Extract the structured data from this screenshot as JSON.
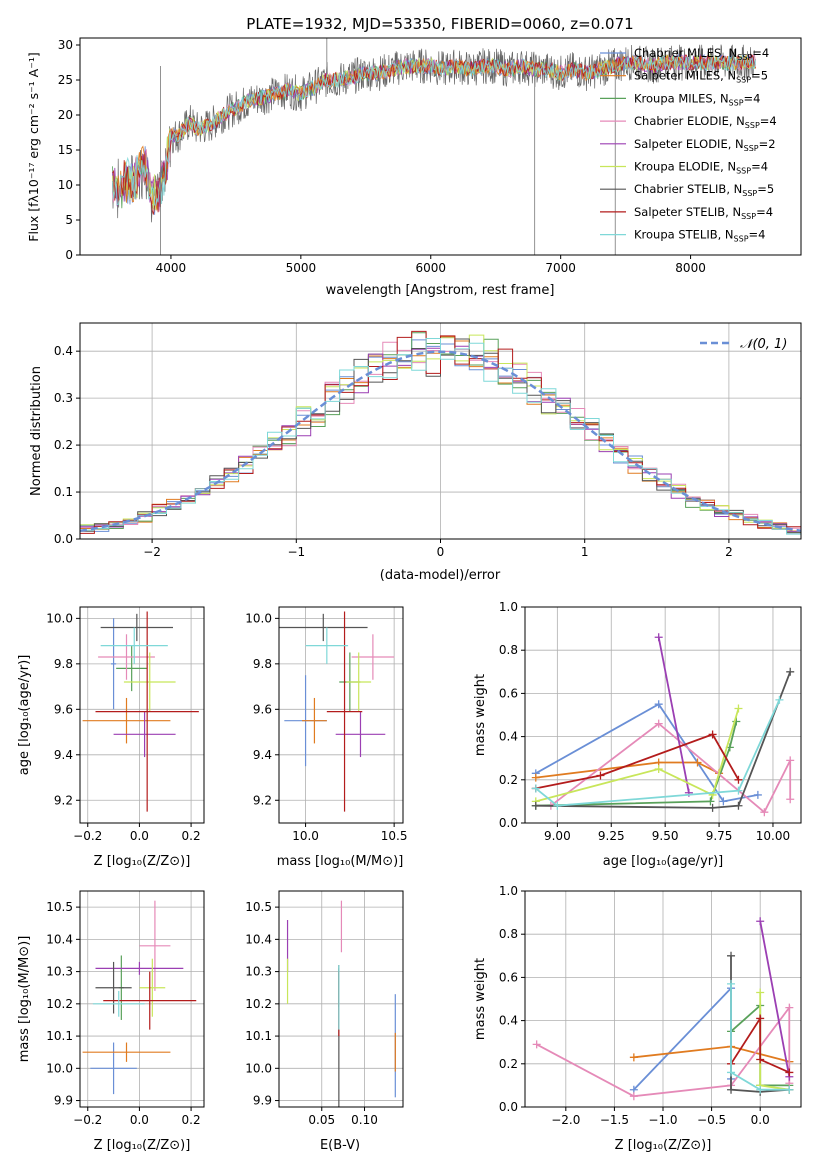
{
  "colors": [
    "#6a8fd6",
    "#e07b20",
    "#59a15a",
    "#e58ab8",
    "#9b3fb3",
    "#c8e65a",
    "#555555",
    "#b31c1c",
    "#7fd8d8"
  ],
  "chart_data": [
    {
      "id": "spectrum",
      "type": "line",
      "title": "PLATE=1932, MJD=53350, FIBERID=0060, z=0.071",
      "xlabel": "wavelength [Angstrom, rest frame]",
      "ylabel": "Flux [fλ10⁻¹⁷ erg cm⁻² s⁻¹ A⁻¹]",
      "xlim": [
        3300,
        8850
      ],
      "ylim": [
        0,
        31
      ],
      "xticks": [
        "4000",
        "5000",
        "6000",
        "7000",
        "8000"
      ],
      "yticks": [
        "0",
        "5",
        "10",
        "15",
        "20",
        "25",
        "30"
      ],
      "grid": false,
      "legend_position": "upper-right",
      "x": [
        3550,
        3600,
        3650,
        3700,
        3750,
        3800,
        3850,
        3900,
        3950,
        4000,
        4050,
        4100,
        4150,
        4200,
        4300,
        4400,
        4500,
        4600,
        4700,
        4800,
        4900,
        5000,
        5100,
        5200,
        5300,
        5400,
        5500,
        5600,
        5700,
        5800,
        5900,
        6000,
        6100,
        6200,
        6300,
        6400,
        6500,
        6600,
        6700,
        6800,
        6900,
        7000,
        7100,
        7200,
        7300,
        7400,
        7500,
        7600,
        7700,
        7800,
        7900,
        8000,
        8100,
        8200,
        8300,
        8400,
        8500,
        8600,
        8700,
        8800
      ],
      "flux": [
        10,
        9,
        11,
        10,
        12,
        13,
        9,
        8,
        12,
        17,
        17,
        18,
        19,
        18,
        18.5,
        20,
        21,
        22,
        22.5,
        23,
        23.5,
        23,
        24,
        25,
        25,
        25.5,
        26,
        26,
        26.5,
        27,
        27,
        27,
        26.5,
        27,
        26.5,
        27,
        27,
        26.5,
        27,
        26.5,
        26.5,
        26,
        26.5,
        26,
        26.5,
        27,
        27.5,
        27.5,
        27,
        27.5,
        27.5,
        27.5,
        27.5,
        27.5,
        27.5,
        27.5,
        27.5,
        27.5,
        27.5,
        27.5
      ],
      "series": [
        {
          "name": "Chabrier MILES, N_SSP=4"
        },
        {
          "name": "Salpeter MILES, N_SSP=5"
        },
        {
          "name": "Kroupa MILES, N_SSP=4"
        },
        {
          "name": "Chabrier ELODIE, N_SSP=4"
        },
        {
          "name": "Salpeter ELODIE, N_SSP=2"
        },
        {
          "name": "Kroupa ELODIE, N_SSP=4"
        },
        {
          "name": "Chabrier STELIB, N_SSP=5"
        },
        {
          "name": "Salpeter STELIB, N_SSP=4"
        },
        {
          "name": "Kroupa STELIB, N_SSP=4"
        }
      ],
      "legend": [
        {
          "pre": "Chabrier MILES, N",
          "sub": "SSP",
          "post": "=4"
        },
        {
          "pre": "Salpeter MILES, N",
          "sub": "SSP",
          "post": "=5"
        },
        {
          "pre": "Kroupa MILES, N",
          "sub": "SSP",
          "post": "=4"
        },
        {
          "pre": "Chabrier ELODIE, N",
          "sub": "SSP",
          "post": "=4"
        },
        {
          "pre": "Salpeter ELODIE, N",
          "sub": "SSP",
          "post": "=2"
        },
        {
          "pre": "Kroupa ELODIE, N",
          "sub": "SSP",
          "post": "=4"
        },
        {
          "pre": "Chabrier STELIB, N",
          "sub": "SSP",
          "post": "=5"
        },
        {
          "pre": "Salpeter STELIB, N",
          "sub": "SSP",
          "post": "=4"
        },
        {
          "pre": "Kroupa STELIB, N",
          "sub": "SSP",
          "post": "=4"
        }
      ]
    },
    {
      "id": "residuals",
      "type": "line",
      "xlabel": "(data-model)/error",
      "ylabel": "Normed distribution",
      "xlim": [
        -2.5,
        2.5
      ],
      "ylim": [
        0,
        0.46
      ],
      "xticks": [
        "−2",
        "−1",
        "0",
        "1",
        "2"
      ],
      "yticks": [
        "0.0",
        "0.1",
        "0.2",
        "0.3",
        "0.4"
      ],
      "grid": true,
      "legend_position": "upper-right",
      "legend": [
        "𝒩(0, 1)"
      ],
      "bin_width": 0.1,
      "histograms": [
        [
          0.03,
          0.03,
          0.05,
          0.06,
          0.08,
          0.1,
          0.13,
          0.17,
          0.2,
          0.22,
          0.25,
          0.28,
          0.3,
          0.33,
          0.36,
          0.38,
          0.39,
          0.41,
          0.4,
          0.42,
          0.4,
          0.4,
          0.39,
          0.37,
          0.35,
          0.32,
          0.29,
          0.26,
          0.22,
          0.19,
          0.16,
          0.13,
          0.1,
          0.08,
          0.06,
          0.05,
          0.04,
          0.03,
          0.03,
          0.03,
          0.02,
          0.02,
          0.02,
          0.02,
          0.02,
          0.02,
          0.02,
          0.02,
          0.02,
          0.02
        ]
      ],
      "normal_pdf": true
    },
    {
      "id": "age-vs-Z",
      "type": "scatter",
      "xlabel": "Z [log₁₀(Z/Z⊙)]",
      "ylabel": "age  [log₁₀(age/yr)]",
      "xlim": [
        -0.23,
        0.25
      ],
      "ylim": [
        9.1,
        10.05
      ],
      "xticks": [
        "−0.2",
        "0.0",
        "0.2"
      ],
      "yticks": [
        "9.2",
        "9.4",
        "9.6",
        "9.8",
        "10.0"
      ],
      "grid": true,
      "points": [
        {
          "x": -0.1,
          "y": 9.8,
          "xerr": 0.01,
          "yerr": 0.2
        },
        {
          "x": -0.05,
          "y": 9.55,
          "xerr": 0.17,
          "yerr": 0.1
        },
        {
          "x": -0.03,
          "y": 9.78,
          "xerr": 0.06,
          "yerr": 0.1
        },
        {
          "x": -0.05,
          "y": 9.83,
          "xerr": 0.11,
          "yerr": 0.1
        },
        {
          "x": 0.02,
          "y": 9.49,
          "xerr": 0.12,
          "yerr": 0.1
        },
        {
          "x": 0.04,
          "y": 9.72,
          "xerr": 0.1,
          "yerr": 0.13
        },
        {
          "x": -0.01,
          "y": 9.96,
          "xerr": 0.14,
          "yerr": 0.06
        },
        {
          "x": 0.03,
          "y": 9.59,
          "xerr": 0.2,
          "yerr": 0.44
        },
        {
          "x": -0.02,
          "y": 9.88,
          "xerr": 0.13,
          "yerr": 0.08
        }
      ]
    },
    {
      "id": "age-vs-mass",
      "type": "scatter",
      "xlabel": "mass [log₁₀(M/M⊙)]",
      "xlim": [
        9.85,
        10.55
      ],
      "ylim": [
        9.1,
        10.05
      ],
      "xticks": [
        "10.0",
        "10.5"
      ],
      "yticks": [
        "9.2",
        "9.4",
        "9.6",
        "9.8",
        "10.0"
      ],
      "grid": true,
      "points": [
        {
          "x": 10.0,
          "y": 9.55,
          "xerr": 0.12,
          "yerr": 0.2
        },
        {
          "x": 10.05,
          "y": 9.55,
          "xerr": 0.07,
          "yerr": 0.1
        },
        {
          "x": 10.25,
          "y": 9.72,
          "xerr": 0.06,
          "yerr": 0.13
        },
        {
          "x": 10.38,
          "y": 9.83,
          "xerr": 0.12,
          "yerr": 0.1
        },
        {
          "x": 10.31,
          "y": 9.49,
          "xerr": 0.14,
          "yerr": 0.1
        },
        {
          "x": 10.3,
          "y": 9.72,
          "xerr": 0.07,
          "yerr": 0.13
        },
        {
          "x": 10.1,
          "y": 9.96,
          "xerr": 0.25,
          "yerr": 0.06
        },
        {
          "x": 10.22,
          "y": 9.59,
          "xerr": 0.1,
          "yerr": 0.44
        },
        {
          "x": 10.12,
          "y": 9.88,
          "xerr": 0.12,
          "yerr": 0.08
        }
      ]
    },
    {
      "id": "weight-vs-age",
      "type": "line",
      "xlabel": "age  [log₁₀(age/yr)]",
      "ylabel": "mass weight",
      "xlim": [
        8.85,
        10.13
      ],
      "ylim": [
        0,
        1
      ],
      "xticks": [
        "9.00",
        "9.25",
        "9.50",
        "9.75",
        "10.00"
      ],
      "yticks": [
        "0.0",
        "0.2",
        "0.4",
        "0.6",
        "0.8",
        "1.0"
      ],
      "grid": true,
      "lines": [
        {
          "x": [
            8.9,
            9.47,
            9.77,
            9.93
          ],
          "y": [
            0.23,
            0.55,
            0.1,
            0.13
          ]
        },
        {
          "x": [
            8.9,
            9.47,
            9.65,
            9.75
          ],
          "y": [
            0.21,
            0.28,
            0.28,
            0.23
          ]
        },
        {
          "x": [
            8.9,
            9.71,
            9.8,
            9.83
          ],
          "y": [
            0.08,
            0.1,
            0.35,
            0.47
          ]
        },
        {
          "x": [
            8.97,
            9.47,
            9.96,
            10.08,
            10.08
          ],
          "y": [
            0.08,
            0.46,
            0.05,
            0.29,
            0.11
          ]
        },
        {
          "x": [
            9.47,
            9.61
          ],
          "y": [
            0.86,
            0.14
          ]
        },
        {
          "x": [
            8.9,
            9.47,
            9.72,
            9.84
          ],
          "y": [
            0.1,
            0.25,
            0.13,
            0.53
          ]
        },
        {
          "x": [
            8.9,
            9.72,
            9.84,
            10.08
          ],
          "y": [
            0.08,
            0.07,
            0.08,
            0.7
          ]
        },
        {
          "x": [
            8.9,
            9.2,
            9.72,
            9.84
          ],
          "y": [
            0.16,
            0.22,
            0.41,
            0.2
          ]
        },
        {
          "x": [
            8.9,
            9.0,
            9.84,
            10.03
          ],
          "y": [
            0.16,
            0.08,
            0.15,
            0.57
          ]
        }
      ]
    },
    {
      "id": "mass-vs-Z",
      "type": "scatter",
      "xlabel": "Z [log₁₀(Z/Z⊙)]",
      "ylabel": "mass [log₁₀(M/M⊙)]",
      "xlim": [
        -0.23,
        0.25
      ],
      "ylim": [
        9.88,
        10.55
      ],
      "xticks": [
        "−0.2",
        "0.0",
        "0.2"
      ],
      "yticks": [
        "9.9",
        "10.0",
        "10.1",
        "10.2",
        "10.3",
        "10.4",
        "10.5"
      ],
      "grid": true,
      "points": [
        {
          "x": -0.1,
          "y": 10.0,
          "xerr": 0.09,
          "yerr": 0.08
        },
        {
          "x": -0.05,
          "y": 10.05,
          "xerr": 0.17,
          "yerr": 0.03
        },
        {
          "x": -0.07,
          "y": 10.25,
          "xerr": 0.01,
          "yerr": 0.1
        },
        {
          "x": 0.06,
          "y": 10.38,
          "xerr": 0.06,
          "yerr": 0.14
        },
        {
          "x": 0.0,
          "y": 10.31,
          "xerr": 0.17,
          "yerr": 0.02
        },
        {
          "x": 0.05,
          "y": 10.25,
          "xerr": 0.05,
          "yerr": 0.09
        },
        {
          "x": -0.1,
          "y": 10.25,
          "xerr": 0.07,
          "yerr": 0.08
        },
        {
          "x": 0.04,
          "y": 10.21,
          "xerr": 0.18,
          "yerr": 0.09
        },
        {
          "x": -0.08,
          "y": 10.2,
          "xerr": 0.1,
          "yerr": 0.04
        }
      ]
    },
    {
      "id": "mass-vs-EBV",
      "type": "scatter",
      "xlabel": "E(B-V)",
      "xlim": [
        0.0,
        0.145
      ],
      "ylim": [
        9.88,
        10.55
      ],
      "xticks": [
        "0.05",
        "0.10"
      ],
      "yticks": [
        "9.9",
        "10.0",
        "10.1",
        "10.2",
        "10.3",
        "10.4",
        "10.5"
      ],
      "grid": true,
      "points": [
        {
          "x": 0.136,
          "y": 10.07,
          "xerr": 0,
          "yerr": 0.16
        },
        {
          "x": 0.136,
          "y": 10.05,
          "xerr": 0,
          "yerr": 0.06
        },
        {
          "x": 0.07,
          "y": 10.25,
          "xerr": 0,
          "yerr": 0.06
        },
        {
          "x": 0.073,
          "y": 10.44,
          "xerr": 0,
          "yerr": 0.08
        },
        {
          "x": 0.01,
          "y": 10.38,
          "xerr": 0,
          "yerr": 0.08
        },
        {
          "x": 0.01,
          "y": 10.27,
          "xerr": 0,
          "yerr": 0.07
        },
        {
          "x": 0.07,
          "y": 10.1,
          "xerr": 0,
          "yerr": 0.22
        },
        {
          "x": 0.07,
          "y": 10.2,
          "xerr": 0,
          "yerr": 0.1
        },
        {
          "x": 0.07,
          "y": 10.22,
          "xerr": 0,
          "yerr": 0.1
        }
      ]
    },
    {
      "id": "weight-vs-Z",
      "type": "line",
      "xlabel": "Z [log₁₀(Z/Z⊙)]",
      "ylabel": "mass weight",
      "xlim": [
        -2.42,
        0.42
      ],
      "ylim": [
        0,
        1
      ],
      "xticks": [
        "−2.0",
        "−1.5",
        "−1.0",
        "−0.5",
        "0.0"
      ],
      "yticks": [
        "0.0",
        "0.2",
        "0.4",
        "0.6",
        "0.8",
        "1.0"
      ],
      "grid": true,
      "lines": [
        {
          "x": [
            -1.3,
            -0.3,
            -0.3
          ],
          "y": [
            0.08,
            0.55,
            0.13
          ]
        },
        {
          "x": [
            -1.3,
            -0.3,
            0.3,
            0.3
          ],
          "y": [
            0.23,
            0.28,
            0.21,
            0.21
          ]
        },
        {
          "x": [
            -0.3,
            0.0,
            0.0,
            0.3
          ],
          "y": [
            0.35,
            0.47,
            0.1,
            0.1
          ]
        },
        {
          "x": [
            -2.3,
            -1.3,
            -0.3,
            0.3,
            0.3
          ],
          "y": [
            0.29,
            0.05,
            0.1,
            0.46,
            0.11
          ]
        },
        {
          "x": [
            0.0,
            0.3
          ],
          "y": [
            0.86,
            0.14
          ]
        },
        {
          "x": [
            0.0,
            0.0,
            0.3
          ],
          "y": [
            0.53,
            0.1,
            0.08
          ]
        },
        {
          "x": [
            -0.3,
            -0.3,
            0.0,
            0.3
          ],
          "y": [
            0.7,
            0.08,
            0.07,
            0.08
          ]
        },
        {
          "x": [
            -0.3,
            0.0,
            0.0,
            0.3
          ],
          "y": [
            0.2,
            0.41,
            0.22,
            0.16
          ]
        },
        {
          "x": [
            -0.3,
            -0.3,
            0.0,
            0.3
          ],
          "y": [
            0.57,
            0.16,
            0.08,
            0.08
          ]
        }
      ]
    }
  ]
}
